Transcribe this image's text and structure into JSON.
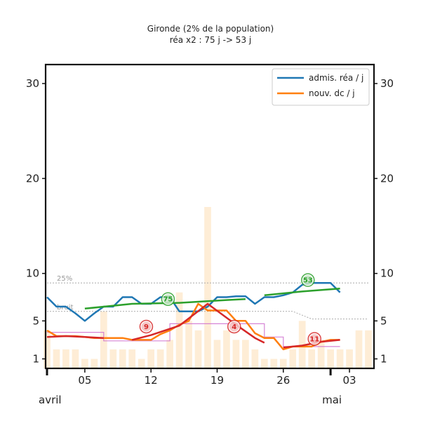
{
  "chart_data": {
    "type": "line",
    "title": "Gironde (2% de la population)",
    "subtitle": "réa x2 : 75 j -> 53 j",
    "xlabel": "",
    "ylabel": "",
    "x_range": [
      "2020-04-01",
      "2020-05-05"
    ],
    "ylim": [
      0,
      32
    ],
    "y_ticks": [
      1,
      5,
      10,
      20,
      30
    ],
    "y_tick_labels": [
      "1",
      "5",
      "10",
      "20",
      "30"
    ],
    "x_ticks": [
      {
        "date": "2020-04-01",
        "label": "",
        "major": true
      },
      {
        "date": "2020-04-05",
        "label": "05"
      },
      {
        "date": "2020-04-12",
        "label": "12"
      },
      {
        "date": "2020-04-19",
        "label": "19"
      },
      {
        "date": "2020-04-26",
        "label": "26"
      },
      {
        "date": "2020-05-01",
        "label": "",
        "major": true
      },
      {
        "date": "2020-05-03",
        "label": "03"
      }
    ],
    "month_labels": [
      {
        "date": "2020-04-01",
        "label": "avril"
      },
      {
        "date": "2020-05-01",
        "label": "mai"
      }
    ],
    "legend": {
      "position": "top-right",
      "entries": [
        "admis. réa / j",
        "nouv. dc / j"
      ]
    },
    "reference_lines": [
      {
        "label": "25%",
        "points": [
          [
            1,
            9
          ],
          [
            30,
            9
          ],
          [
            35,
            9
          ]
        ]
      },
      {
        "label": "bruit",
        "points": [
          [
            1,
            6
          ],
          [
            27,
            6
          ],
          [
            29,
            5.2
          ],
          [
            35,
            5.2
          ]
        ]
      }
    ],
    "bars": {
      "x": [
        1,
        2,
        3,
        4,
        5,
        6,
        7,
        8,
        9,
        10,
        11,
        12,
        13,
        14,
        15,
        16,
        17,
        18,
        19,
        20,
        21,
        22,
        23,
        24,
        25,
        26,
        27,
        28,
        29,
        30,
        31,
        32,
        33,
        34,
        35
      ],
      "values": [
        4,
        2,
        2,
        2,
        1,
        1,
        6,
        2,
        2,
        2,
        1,
        2,
        2,
        3,
        8,
        5,
        4,
        17,
        3,
        4,
        3,
        3,
        2,
        1,
        1,
        1,
        2,
        5,
        2,
        3,
        2,
        2,
        2,
        4,
        4
      ]
    },
    "series": [
      {
        "name": "admis. réa / j",
        "color": "#1f77b4",
        "points": [
          [
            1,
            7.5
          ],
          [
            2,
            6.5
          ],
          [
            3,
            6.5
          ],
          [
            4,
            5.8
          ],
          [
            5,
            5
          ],
          [
            6,
            5.8
          ],
          [
            7,
            6.5
          ],
          [
            8,
            6.5
          ],
          [
            9,
            7.5
          ],
          [
            10,
            7.5
          ],
          [
            11,
            6.8
          ],
          [
            12,
            6.8
          ],
          [
            13,
            7.5
          ],
          [
            14,
            7.5
          ],
          [
            15,
            6
          ],
          [
            16,
            6
          ],
          [
            17,
            6
          ],
          [
            18,
            6.5
          ],
          [
            19,
            7.5
          ],
          [
            20,
            7.5
          ],
          [
            21,
            7.6
          ],
          [
            22,
            7.6
          ],
          [
            23,
            6.8
          ],
          [
            24,
            7.5
          ],
          [
            25,
            7.5
          ],
          [
            26,
            7.7
          ],
          [
            27,
            8
          ],
          [
            28,
            8.8
          ],
          [
            29,
            9
          ],
          [
            30,
            9
          ],
          [
            31,
            9
          ],
          [
            32,
            8
          ]
        ]
      },
      {
        "name": "nouv. dc / j",
        "color": "#ff7f0e",
        "points": [
          [
            1,
            4
          ],
          [
            2,
            3.4
          ],
          [
            3,
            3.4
          ],
          [
            4,
            3.4
          ],
          [
            5,
            3.3
          ],
          [
            6,
            3.2
          ],
          [
            7,
            3.2
          ],
          [
            8,
            3.2
          ],
          [
            9,
            3.2
          ],
          [
            10,
            3
          ],
          [
            11,
            3
          ],
          [
            12,
            3
          ],
          [
            13,
            3.6
          ],
          [
            14,
            4
          ],
          [
            15,
            4.6
          ],
          [
            16,
            5
          ],
          [
            17,
            6.8
          ],
          [
            18,
            6.1
          ],
          [
            19,
            6.1
          ],
          [
            20,
            6.1
          ],
          [
            21,
            5
          ],
          [
            22,
            5
          ],
          [
            23,
            3.7
          ],
          [
            24,
            3.2
          ],
          [
            25,
            3.2
          ],
          [
            26,
            2
          ],
          [
            27,
            2.3
          ],
          [
            28,
            2.3
          ],
          [
            29,
            2.3
          ],
          [
            30,
            2.8
          ],
          [
            31,
            3
          ],
          [
            32,
            3
          ]
        ]
      }
    ],
    "trends": [
      {
        "color": "#2ca02c",
        "points": [
          [
            5,
            6.3
          ],
          [
            10,
            6.8
          ],
          [
            15,
            6.9
          ],
          [
            20,
            7.2
          ],
          [
            22,
            7.3
          ]
        ]
      },
      {
        "color": "#2ca02c",
        "points": [
          [
            24,
            7.7
          ],
          [
            28,
            8.1
          ],
          [
            32,
            8.4
          ]
        ]
      },
      {
        "color": "#d62728",
        "points": [
          [
            1,
            3.3
          ],
          [
            3,
            3.4
          ],
          [
            5,
            3.3
          ],
          [
            7,
            3.2
          ]
        ]
      },
      {
        "color": "#d62728",
        "points": [
          [
            10,
            3
          ],
          [
            12,
            3.5
          ],
          [
            15,
            4.5
          ],
          [
            18,
            6.8
          ],
          [
            21,
            4.6
          ],
          [
            23,
            3.2
          ],
          [
            24,
            2.7
          ]
        ]
      },
      {
        "color": "#d62728",
        "points": [
          [
            26,
            2.2
          ],
          [
            28,
            2.4
          ],
          [
            30,
            2.8
          ],
          [
            32,
            3
          ]
        ]
      }
    ],
    "steps": [
      {
        "color": "#cc66cc",
        "points": [
          [
            1,
            3.8
          ],
          [
            7,
            3.8
          ],
          [
            7,
            2.9
          ],
          [
            14,
            2.9
          ],
          [
            14,
            4.7
          ],
          [
            24,
            4.7
          ],
          [
            24,
            3.3
          ],
          [
            26,
            3.3
          ],
          [
            26,
            2.3
          ],
          [
            32,
            2.3
          ]
        ]
      }
    ],
    "annotations": [
      {
        "label": "75",
        "x": 13.8,
        "y": 7.3,
        "color": "#2ca02c"
      },
      {
        "label": "53",
        "x": 28.6,
        "y": 9.3,
        "color": "#2ca02c"
      },
      {
        "label": "9",
        "x": 11.5,
        "y": 4.4,
        "color": "#d62728"
      },
      {
        "label": "4",
        "x": 20.8,
        "y": 4.4,
        "color": "#d62728"
      },
      {
        "label": "11",
        "x": 29.3,
        "y": 3.1,
        "color": "#d62728"
      }
    ]
  }
}
